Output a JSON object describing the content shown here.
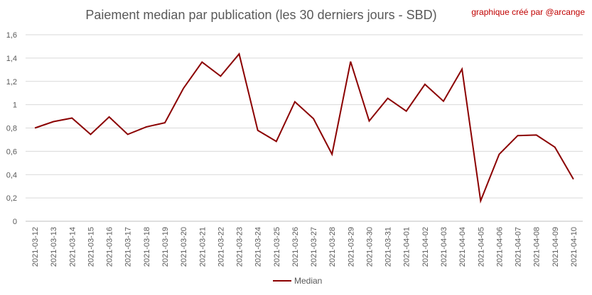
{
  "credit": "graphique créé par @arcange",
  "chart_data": {
    "type": "line",
    "title": "Paiement median par publication (les 30 derniers jours - SBD)",
    "categories": [
      "2021-03-12",
      "2021-03-13",
      "2021-03-14",
      "2021-03-15",
      "2021-03-16",
      "2021-03-17",
      "2021-03-18",
      "2021-03-19",
      "2021-03-20",
      "2021-03-21",
      "2021-03-22",
      "2021-03-23",
      "2021-03-24",
      "2021-03-25",
      "2021-03-26",
      "2021-03-27",
      "2021-03-28",
      "2021-03-29",
      "2021-03-30",
      "2021-03-31",
      "2021-04-01",
      "2021-04-02",
      "2021-04-03",
      "2021-04-04",
      "2021-04-05",
      "2021-04-06",
      "2021-04-07",
      "2021-04-08",
      "2021-04-09",
      "2021-04-10"
    ],
    "series": [
      {
        "name": "Median",
        "color": "#8b0000",
        "values": [
          0.8,
          0.855,
          0.885,
          0.745,
          0.895,
          0.745,
          0.81,
          0.845,
          1.14,
          1.365,
          1.245,
          1.435,
          0.78,
          0.685,
          1.025,
          0.88,
          0.575,
          1.37,
          0.86,
          1.055,
          0.945,
          1.175,
          1.03,
          1.305,
          0.175,
          0.575,
          0.735,
          0.74,
          0.635,
          0.36
        ]
      }
    ],
    "ylim": [
      0,
      1.6
    ],
    "yticks": [
      "0",
      "0,2",
      "0,4",
      "0,6",
      "0,8",
      "1",
      "1,2",
      "1,4",
      "1,6"
    ],
    "grid": true,
    "legend": "bottom"
  }
}
